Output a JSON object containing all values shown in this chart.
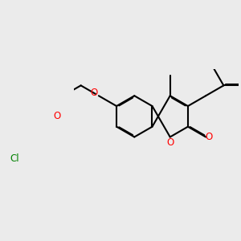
{
  "bg_color": "#ebebeb",
  "bond_color": "#000000",
  "o_color": "#ff0000",
  "cl_color": "#008000",
  "lw": 1.5,
  "dbo": 0.04,
  "figsize": [
    3.0,
    3.0
  ],
  "dpi": 100,
  "xlim": [
    -3.8,
    4.2
  ],
  "ylim": [
    -2.2,
    2.8
  ]
}
